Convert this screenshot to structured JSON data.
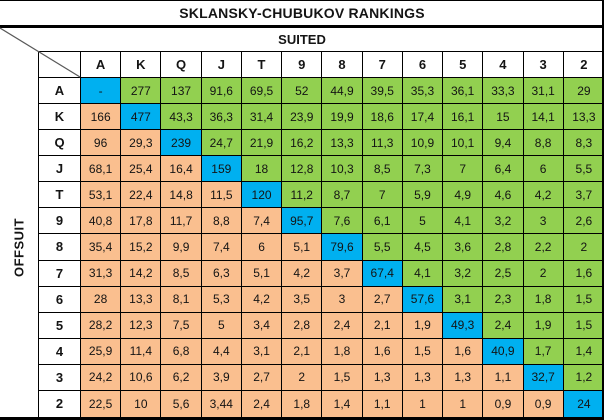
{
  "chart_data": {
    "type": "heatmap",
    "title": "SKLANSKY-CHUBUKOV RANKINGS",
    "column_group_label": "SUITED",
    "row_group_label": "OFFSUIT",
    "column_headers": [
      "A",
      "K",
      "Q",
      "J",
      "T",
      "9",
      "8",
      "7",
      "6",
      "5",
      "4",
      "3",
      "2"
    ],
    "row_headers": [
      "A",
      "K",
      "Q",
      "J",
      "T",
      "9",
      "8",
      "7",
      "6",
      "5",
      "4",
      "3",
      "2"
    ],
    "values": [
      [
        "-",
        "277",
        "137",
        "91,6",
        "69,5",
        "52",
        "44,9",
        "39,5",
        "35,3",
        "36,1",
        "33,3",
        "31,1",
        "29"
      ],
      [
        "166",
        "477",
        "43,3",
        "36,3",
        "31,4",
        "23,9",
        "19,9",
        "18,6",
        "17,4",
        "16,1",
        "15",
        "14,1",
        "13,3"
      ],
      [
        "96",
        "29,3",
        "239",
        "24,7",
        "21,9",
        "16,2",
        "13,3",
        "11,3",
        "10,9",
        "10,1",
        "9,4",
        "8,8",
        "8,3"
      ],
      [
        "68,1",
        "25,4",
        "16,4",
        "159",
        "18",
        "12,8",
        "10,3",
        "8,5",
        "7,3",
        "7",
        "6,4",
        "6",
        "5,5"
      ],
      [
        "53,1",
        "22,4",
        "14,8",
        "11,5",
        "120",
        "11,2",
        "8,7",
        "7",
        "5,9",
        "4,9",
        "4,6",
        "4,2",
        "3,7"
      ],
      [
        "40,8",
        "17,8",
        "11,7",
        "8,8",
        "7,4",
        "95,7",
        "7,6",
        "6,1",
        "5",
        "4,1",
        "3,2",
        "3",
        "2,6"
      ],
      [
        "35,4",
        "15,2",
        "9,9",
        "7,4",
        "6",
        "5,1",
        "79,6",
        "5,5",
        "4,5",
        "3,6",
        "2,8",
        "2,2",
        "2"
      ],
      [
        "31,3",
        "14,2",
        "8,5",
        "6,3",
        "5,1",
        "4,2",
        "3,7",
        "67,4",
        "4,1",
        "3,2",
        "2,5",
        "2",
        "1,6"
      ],
      [
        "28",
        "13,3",
        "8,1",
        "5,3",
        "4,2",
        "3,5",
        "3",
        "2,7",
        "57,6",
        "3,1",
        "2,3",
        "1,8",
        "1,5"
      ],
      [
        "28,2",
        "12,3",
        "7,5",
        "5",
        "3,4",
        "2,8",
        "2,4",
        "2,1",
        "1,9",
        "49,3",
        "2,4",
        "1,9",
        "1,5"
      ],
      [
        "25,9",
        "11,4",
        "6,8",
        "4,4",
        "3,1",
        "2,1",
        "1,8",
        "1,6",
        "1,5",
        "1,6",
        "40,9",
        "1,7",
        "1,4"
      ],
      [
        "24,2",
        "10,6",
        "6,2",
        "3,9",
        "2,7",
        "2",
        "1,5",
        "1,3",
        "1,3",
        "1,3",
        "1,1",
        "32,7",
        "1,2"
      ],
      [
        "22,5",
        "10",
        "5,6",
        "3,44",
        "2,4",
        "1,8",
        "1,4",
        "1,1",
        "1",
        "1",
        "0,9",
        "0,9",
        "24"
      ]
    ],
    "region_semantics": {
      "above_diagonal": "suited hands (green)",
      "below_diagonal": "offsuit hands (orange)",
      "diagonal": "pocket pairs (blue)"
    },
    "legend_position": "none",
    "grid": true
  },
  "colors": {
    "suited": "#92D050",
    "offsuit": "#FABF8F",
    "pair": "#00B0F0",
    "border": "#000000",
    "header_bg": "#FFFFFF",
    "text": "#141414",
    "diagonal_line": "#595959"
  }
}
